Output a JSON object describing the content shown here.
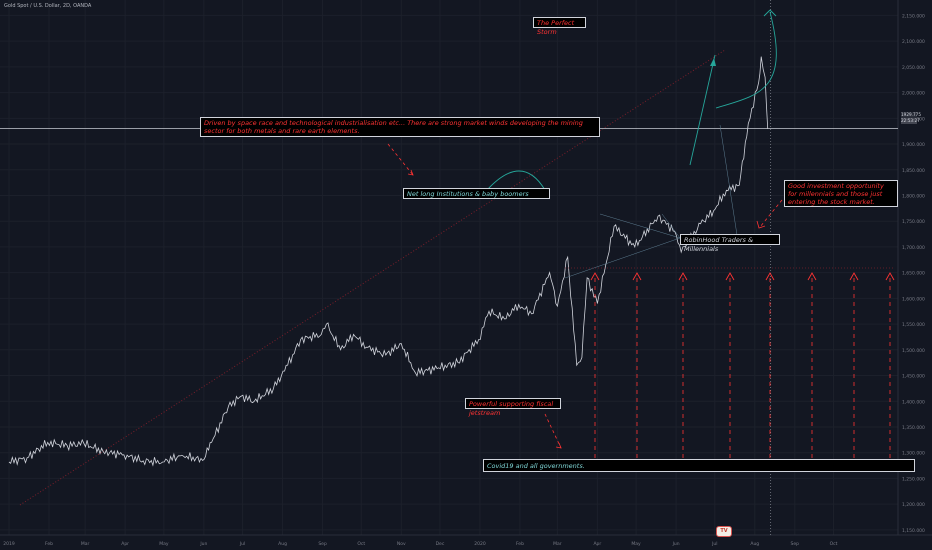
{
  "header": {
    "symbol_line": "Gold Spot / U.S. Dollar, 2D, OANDA"
  },
  "annotations": {
    "perfect_storm": "The Perfect Storm",
    "driven_by": "Driven by space race and technological industrialisation  etc... There are strong market winds developing the mining sector for both metals and rare earth elements.",
    "net_long": "Net long Institutions & baby boomers",
    "good_investment": "Good investment opportunity for millennials and those just entering the stock market.",
    "robinhood": "RobinHood Traders &  Millennials",
    "fiscal": "Powerful supporting fiscal jetstream",
    "covid": "Covid19 and all governments."
  },
  "price_markers": {
    "current": "1929.775",
    "countdown": "22:53:27"
  },
  "logo_text": "TV",
  "colors": {
    "background": "#131722",
    "price_line": "#d1d4dc",
    "red": "#ff3333",
    "teal": "#26a69a",
    "grid": "#2a2e39"
  },
  "chart_data": {
    "type": "line",
    "series": [
      {
        "points": [
          [
            "2019-01-01",
            1282
          ],
          [
            "2019-01-15",
            1290
          ],
          [
            "2019-01-31",
            1320
          ],
          [
            "2019-02-15",
            1314
          ],
          [
            "2019-02-28",
            1318
          ],
          [
            "2019-03-15",
            1302
          ],
          [
            "2019-03-31",
            1296
          ],
          [
            "2019-04-15",
            1284
          ],
          [
            "2019-04-30",
            1282
          ],
          [
            "2019-05-15",
            1295
          ],
          [
            "2019-05-31",
            1285
          ],
          [
            "2019-06-07",
            1320
          ],
          [
            "2019-06-20",
            1390
          ],
          [
            "2019-06-30",
            1410
          ],
          [
            "2019-07-10",
            1400
          ],
          [
            "2019-07-25",
            1425
          ],
          [
            "2019-08-05",
            1470
          ],
          [
            "2019-08-15",
            1520
          ],
          [
            "2019-08-31",
            1530
          ],
          [
            "2019-09-04",
            1550
          ],
          [
            "2019-09-15",
            1500
          ],
          [
            "2019-09-25",
            1530
          ],
          [
            "2019-10-05",
            1505
          ],
          [
            "2019-10-20",
            1490
          ],
          [
            "2019-11-01",
            1512
          ],
          [
            "2019-11-12",
            1455
          ],
          [
            "2019-11-30",
            1465
          ],
          [
            "2019-12-15",
            1475
          ],
          [
            "2019-12-31",
            1520
          ],
          [
            "2020-01-08",
            1575
          ],
          [
            "2020-01-20",
            1560
          ],
          [
            "2020-01-31",
            1588
          ],
          [
            "2020-02-10",
            1570
          ],
          [
            "2020-02-24",
            1650
          ],
          [
            "2020-03-01",
            1585
          ],
          [
            "2020-03-09",
            1680
          ],
          [
            "2020-03-16",
            1470
          ],
          [
            "2020-03-20",
            1485
          ],
          [
            "2020-03-24",
            1640
          ],
          [
            "2020-04-01",
            1590
          ],
          [
            "2020-04-14",
            1740
          ],
          [
            "2020-04-30",
            1700
          ],
          [
            "2020-05-18",
            1760
          ],
          [
            "2020-05-31",
            1730
          ],
          [
            "2020-06-05",
            1690
          ],
          [
            "2020-06-20",
            1745
          ],
          [
            "2020-06-30",
            1770
          ],
          [
            "2020-07-10",
            1810
          ],
          [
            "2020-07-20",
            1820
          ],
          [
            "2020-07-27",
            1940
          ],
          [
            "2020-08-04",
            2020
          ],
          [
            "2020-08-06",
            2070
          ],
          [
            "2020-08-09",
            2030
          ],
          [
            "2020-08-11",
            1930
          ]
        ]
      }
    ],
    "x_ticks": [
      "2019",
      "Feb",
      "Mar",
      "Apr",
      "May",
      "Jun",
      "Jul",
      "Aug",
      "Sep",
      "Oct",
      "Nov",
      "Dec",
      "2020",
      "Feb",
      "Mar",
      "Apr",
      "May",
      "Jun",
      "Jul",
      "Aug",
      "Sep",
      "Oct"
    ],
    "y_ticks": [
      2150,
      2100,
      2050,
      2000,
      1950,
      1900,
      1850,
      1800,
      1750,
      1700,
      1650,
      1600,
      1550,
      1500,
      1450,
      1400,
      1350,
      1300,
      1250,
      1200,
      1150
    ],
    "ylim": [
      1140,
      2180
    ],
    "xlim": [
      "2018-12-25",
      "2020-11-20"
    ]
  }
}
